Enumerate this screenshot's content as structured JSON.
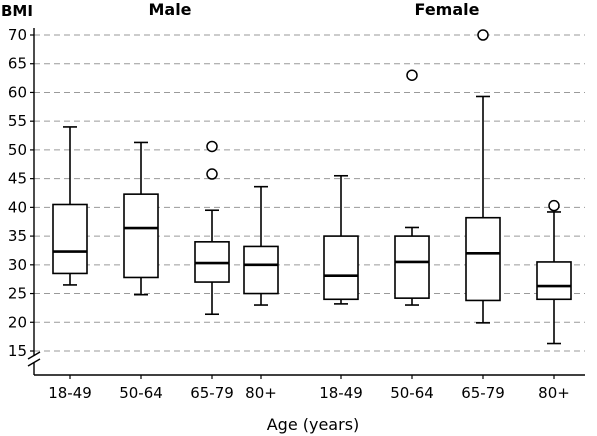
{
  "chart_data": {
    "type": "boxplot",
    "ylabel": "BMI",
    "xlabel": "Age (years)",
    "ylim": [
      15,
      70
    ],
    "yticks": [
      15,
      20,
      25,
      30,
      35,
      40,
      45,
      50,
      55,
      60,
      65,
      70
    ],
    "grid": "horizontal dashed",
    "axis_break": true,
    "groups": [
      {
        "title": "Male",
        "categories": [
          {
            "label": "18-49",
            "whisker_low": 26.5,
            "q1": 28.5,
            "median": 32.3,
            "q3": 40.5,
            "whisker_high": 54,
            "outliers": []
          },
          {
            "label": "50-64",
            "whisker_low": 24.8,
            "q1": 27.8,
            "median": 36.4,
            "q3": 42.3,
            "whisker_high": 51.3,
            "outliers": []
          },
          {
            "label": "65-79",
            "whisker_low": 21.4,
            "q1": 27.0,
            "median": 30.3,
            "q3": 34.0,
            "whisker_high": 39.5,
            "outliers": [
              45.8,
              50.6
            ]
          },
          {
            "label": "80+",
            "whisker_low": 23.0,
            "q1": 25.0,
            "median": 30.0,
            "q3": 33.2,
            "whisker_high": 43.6,
            "outliers": []
          }
        ]
      },
      {
        "title": "Female",
        "categories": [
          {
            "label": "18-49",
            "whisker_low": 23.2,
            "q1": 24.0,
            "median": 28.1,
            "q3": 35.0,
            "whisker_high": 45.5,
            "outliers": []
          },
          {
            "label": "50-64",
            "whisker_low": 23.0,
            "q1": 24.2,
            "median": 30.5,
            "q3": 35.0,
            "whisker_high": 36.5,
            "outliers": [
              63
            ]
          },
          {
            "label": "65-79",
            "whisker_low": 19.9,
            "q1": 23.8,
            "median": 32.0,
            "q3": 38.2,
            "whisker_high": 59.3,
            "outliers": [
              70
            ]
          },
          {
            "label": "80+",
            "whisker_low": 16.3,
            "q1": 24.0,
            "median": 26.3,
            "q3": 30.5,
            "whisker_high": 39.2,
            "outliers": [
              40.3
            ]
          }
        ]
      }
    ]
  }
}
